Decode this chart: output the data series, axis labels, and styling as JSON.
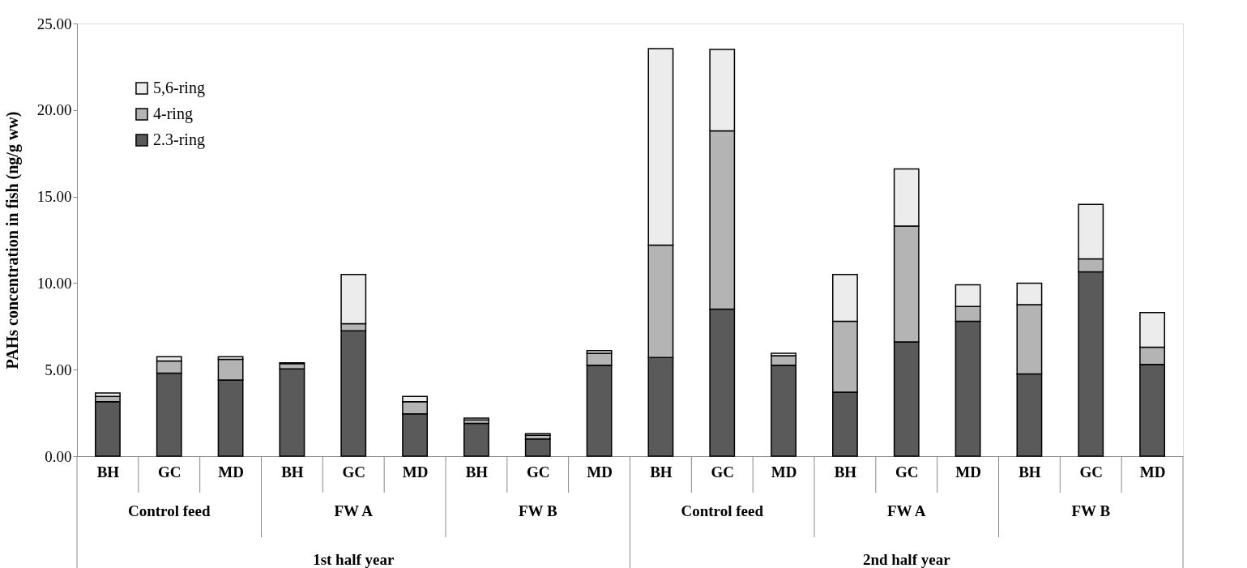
{
  "chart_data": {
    "type": "bar",
    "stacked": true,
    "ylabel": "PAHs concentration in fish (ng/g ww)",
    "categories": [
      "BH",
      "GC",
      "MD",
      "BH",
      "GC",
      "MD",
      "BH",
      "GC",
      "MD",
      "BH",
      "GC",
      "MD",
      "BH",
      "GC",
      "MD",
      "BH",
      "GC",
      "MD"
    ],
    "series": [
      {
        "name": "2.3-ring",
        "color": "#5a5a5a",
        "values": [
          3.15,
          4.8,
          4.4,
          5.05,
          7.25,
          2.45,
          1.9,
          1.0,
          5.25,
          5.7,
          8.5,
          5.25,
          3.7,
          6.6,
          7.8,
          4.75,
          10.65,
          5.3
        ]
      },
      {
        "name": "4-ring",
        "color": "#b4b4b4",
        "values": [
          0.3,
          0.7,
          1.2,
          0.3,
          0.4,
          0.7,
          0.2,
          0.2,
          0.7,
          6.5,
          10.3,
          0.55,
          4.1,
          6.7,
          0.85,
          4.0,
          0.75,
          1.0
        ]
      },
      {
        "name": "5,6-ring",
        "color": "#ececec",
        "values": [
          0.2,
          0.25,
          0.15,
          0.05,
          2.85,
          0.3,
          0.1,
          0.1,
          0.15,
          11.35,
          4.7,
          0.15,
          2.7,
          3.3,
          1.25,
          1.25,
          3.15,
          2.0
        ]
      }
    ],
    "ylim": [
      0,
      25
    ],
    "yticks": [
      {
        "value": 0,
        "label": "0.00"
      },
      {
        "value": 5,
        "label": "5.00"
      },
      {
        "value": 10,
        "label": "10.00"
      },
      {
        "value": 15,
        "label": "15.00"
      },
      {
        "value": 20,
        "label": "20.00"
      },
      {
        "value": 25,
        "label": "25.00"
      }
    ],
    "grid": false,
    "legend": "top left",
    "annotations": [
      "Control feed",
      "FW A",
      "FW B",
      "Control feed",
      "FW A",
      "FW B",
      "1st half year",
      "2nd half year"
    ]
  }
}
